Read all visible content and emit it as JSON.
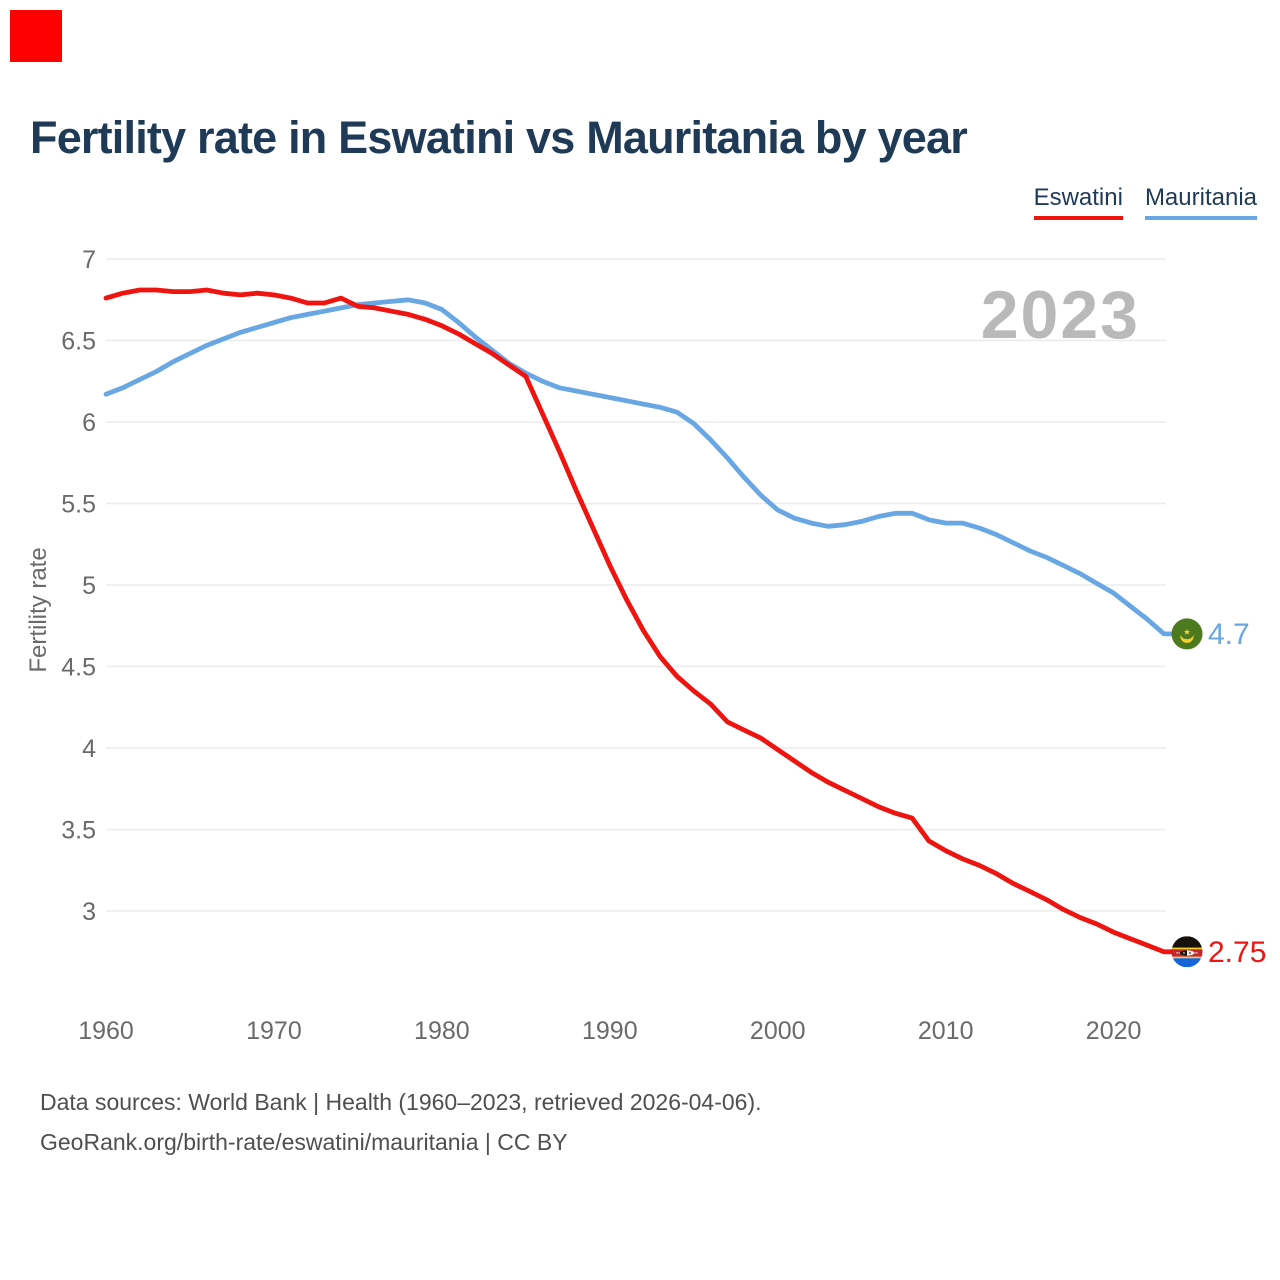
{
  "page": {
    "corner_marker_color": "#ff0000"
  },
  "header": {
    "title": "Fertility rate in Eswatini vs Mauritania by year"
  },
  "legend": [
    {
      "label": "Eswatini",
      "color": "#ee1511"
    },
    {
      "label": "Mauritania",
      "color": "#68a7e3"
    }
  ],
  "watermark": {
    "year": "2023"
  },
  "end_labels": {
    "eswatini": "2.75",
    "mauritania": "4.7"
  },
  "flags": {
    "mauritania": {
      "green": "#4d7a1f",
      "yellow": "#f5d02c"
    },
    "eswatini": {
      "black": "#16110d",
      "yellow": "#f5d02c",
      "red": "#c1272d",
      "blue": "#1565d8",
      "shield_white": "#f2eee4"
    }
  },
  "chart_data": {
    "type": "line",
    "title": "Fertility rate in Eswatini vs Mauritania by year",
    "xlabel": "",
    "ylabel": "Fertility rate",
    "grid": "horizontal",
    "legend_position": "top-right",
    "ylim": [
      2.6,
      7
    ],
    "xlim": [
      1960,
      2023
    ],
    "y_ticks": [
      "7",
      "6.5",
      "6",
      "5.5",
      "5",
      "4.5",
      "4",
      "3.5",
      "3"
    ],
    "x_ticks": [
      1960,
      1970,
      1980,
      1990,
      2000,
      2010,
      2020
    ],
    "x": [
      1960,
      1961,
      1962,
      1963,
      1964,
      1965,
      1966,
      1967,
      1968,
      1969,
      1970,
      1971,
      1972,
      1973,
      1974,
      1975,
      1976,
      1977,
      1978,
      1979,
      1980,
      1981,
      1982,
      1983,
      1984,
      1985,
      1986,
      1987,
      1988,
      1989,
      1990,
      1991,
      1992,
      1993,
      1994,
      1995,
      1996,
      1997,
      1998,
      1999,
      2000,
      2001,
      2002,
      2003,
      2004,
      2005,
      2006,
      2007,
      2008,
      2009,
      2010,
      2011,
      2012,
      2013,
      2014,
      2015,
      2016,
      2017,
      2018,
      2019,
      2020,
      2021,
      2022,
      2023
    ],
    "series": [
      {
        "name": "Eswatini",
        "color": "#ee1511",
        "end_label": "2.75",
        "final_value": 2.75,
        "values": [
          6.76,
          6.79,
          6.81,
          6.81,
          6.8,
          6.8,
          6.81,
          6.79,
          6.78,
          6.79,
          6.78,
          6.76,
          6.73,
          6.73,
          6.76,
          6.71,
          6.7,
          6.68,
          6.66,
          6.63,
          6.59,
          6.54,
          6.48,
          6.42,
          6.35,
          6.28,
          6.05,
          5.82,
          5.58,
          5.35,
          5.12,
          4.91,
          4.72,
          4.56,
          4.44,
          4.35,
          4.27,
          4.16,
          4.11,
          4.06,
          3.99,
          3.92,
          3.85,
          3.79,
          3.74,
          3.69,
          3.64,
          3.6,
          3.57,
          3.43,
          3.37,
          3.32,
          3.28,
          3.23,
          3.17,
          3.12,
          3.07,
          3.01,
          2.96,
          2.92,
          2.87,
          2.83,
          2.79,
          2.75
        ]
      },
      {
        "name": "Mauritania",
        "color": "#68a7e3",
        "end_label": "4.7",
        "final_value": 4.7,
        "values": [
          6.17,
          6.21,
          6.26,
          6.31,
          6.37,
          6.42,
          6.47,
          6.51,
          6.55,
          6.58,
          6.61,
          6.64,
          6.66,
          6.68,
          6.7,
          6.72,
          6.73,
          6.74,
          6.75,
          6.73,
          6.69,
          6.61,
          6.52,
          6.44,
          6.36,
          6.3,
          6.25,
          6.21,
          6.19,
          6.17,
          6.15,
          6.13,
          6.11,
          6.09,
          6.06,
          5.99,
          5.89,
          5.78,
          5.66,
          5.55,
          5.46,
          5.41,
          5.38,
          5.36,
          5.37,
          5.39,
          5.42,
          5.44,
          5.44,
          5.4,
          5.38,
          5.38,
          5.35,
          5.31,
          5.26,
          5.21,
          5.17,
          5.12,
          5.07,
          5.01,
          4.95,
          4.87,
          4.79,
          4.7
        ]
      }
    ]
  },
  "footer": {
    "line1": "Data sources: World Bank | Health (1960–2023, retrieved 2026-04-06).",
    "line2": "GeoRank.org/birth-rate/eswatini/mauritania | CC BY"
  }
}
